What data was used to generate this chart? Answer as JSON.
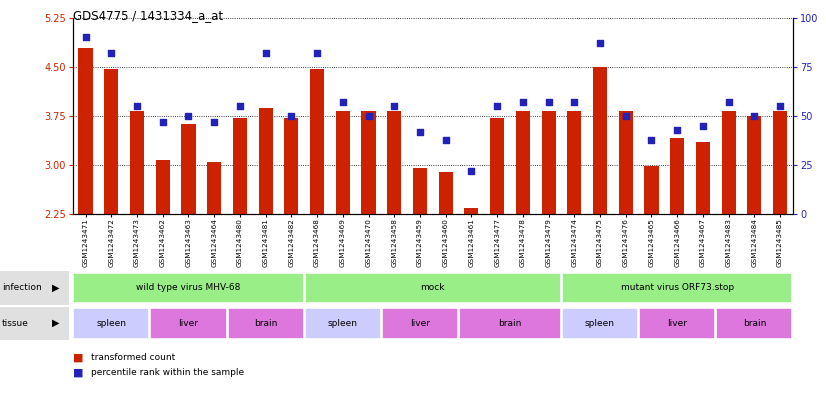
{
  "title": "GDS4775 / 1431334_a_at",
  "samples": [
    "GSM1243471",
    "GSM1243472",
    "GSM1243473",
    "GSM1243462",
    "GSM1243463",
    "GSM1243464",
    "GSM1243480",
    "GSM1243481",
    "GSM1243482",
    "GSM1243468",
    "GSM1243469",
    "GSM1243470",
    "GSM1243458",
    "GSM1243459",
    "GSM1243460",
    "GSM1243461",
    "GSM1243477",
    "GSM1243478",
    "GSM1243479",
    "GSM1243474",
    "GSM1243475",
    "GSM1243476",
    "GSM1243465",
    "GSM1243466",
    "GSM1243467",
    "GSM1243483",
    "GSM1243484",
    "GSM1243485"
  ],
  "bar_values": [
    4.78,
    4.47,
    3.82,
    3.07,
    3.62,
    3.05,
    3.72,
    3.87,
    3.72,
    4.47,
    3.83,
    3.83,
    3.83,
    2.95,
    2.9,
    2.35,
    3.72,
    3.83,
    3.83,
    3.82,
    4.5,
    3.82,
    2.98,
    3.42,
    3.35,
    3.83,
    3.75,
    3.82
  ],
  "percentile_values": [
    90,
    82,
    55,
    47,
    50,
    47,
    55,
    82,
    50,
    82,
    57,
    50,
    55,
    42,
    38,
    22,
    55,
    57,
    57,
    57,
    87,
    50,
    38,
    43,
    45,
    57,
    50,
    55
  ],
  "ylim_left": [
    2.25,
    5.25
  ],
  "ylim_right": [
    0,
    100
  ],
  "yticks_left": [
    2.25,
    3.0,
    3.75,
    4.5,
    5.25
  ],
  "yticks_right": [
    0,
    25,
    50,
    75,
    100
  ],
  "bar_color": "#cc2200",
  "dot_color": "#2222bb",
  "bar_bottom": 2.25,
  "infection_groups": [
    {
      "label": "wild type virus MHV-68",
      "start": 0,
      "end": 9
    },
    {
      "label": "mock",
      "start": 9,
      "end": 19
    },
    {
      "label": "mutant virus ORF73.stop",
      "start": 19,
      "end": 28
    }
  ],
  "tissue_groups": [
    {
      "label": "spleen",
      "start": 0,
      "end": 3,
      "color": "#ccccff"
    },
    {
      "label": "liver",
      "start": 3,
      "end": 6,
      "color": "#dd77dd"
    },
    {
      "label": "brain",
      "start": 6,
      "end": 9,
      "color": "#dd77dd"
    },
    {
      "label": "spleen",
      "start": 9,
      "end": 12,
      "color": "#ccccff"
    },
    {
      "label": "liver",
      "start": 12,
      "end": 15,
      "color": "#dd77dd"
    },
    {
      "label": "brain",
      "start": 15,
      "end": 19,
      "color": "#dd77dd"
    },
    {
      "label": "spleen",
      "start": 19,
      "end": 22,
      "color": "#ccccff"
    },
    {
      "label": "liver",
      "start": 22,
      "end": 25,
      "color": "#dd77dd"
    },
    {
      "label": "brain",
      "start": 25,
      "end": 28,
      "color": "#dd77dd"
    }
  ],
  "inf_color": "#99ee88",
  "label_bg": "#dddddd",
  "ytick_label_color_left": "#cc2200",
  "ytick_label_color_right": "#2222bb"
}
